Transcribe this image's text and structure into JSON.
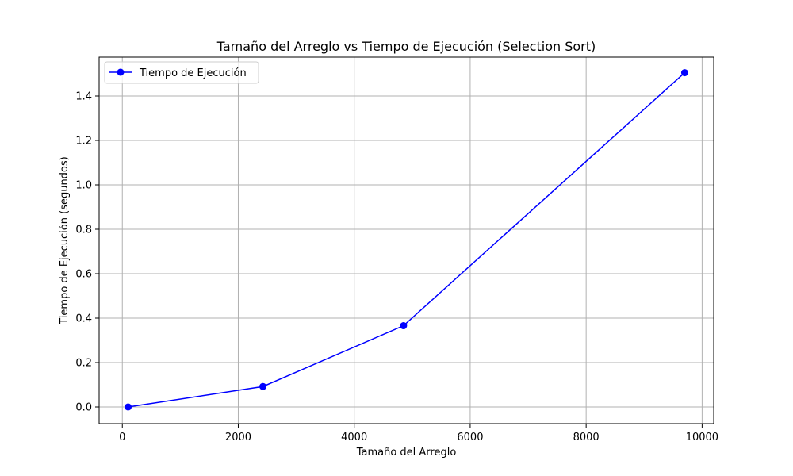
{
  "chart_data": {
    "type": "line",
    "title": "Tamaño del Arreglo vs Tiempo de Ejecución (Selection Sort)",
    "xlabel": "Tamaño del Arreglo",
    "ylabel": "Tiempo de Ejecución (segundos)",
    "xlim": [
      -400,
      10200
    ],
    "ylim": [
      -0.075,
      1.575
    ],
    "xticks": [
      0,
      2000,
      4000,
      6000,
      8000,
      10000
    ],
    "xtick_labels": [
      "0",
      "2000",
      "4000",
      "6000",
      "8000",
      "10000"
    ],
    "yticks": [
      0.0,
      0.2,
      0.4,
      0.6,
      0.8,
      1.0,
      1.2,
      1.4
    ],
    "ytick_labels": [
      "0.0",
      "0.2",
      "0.4",
      "0.6",
      "0.8",
      "1.0",
      "1.2",
      "1.4"
    ],
    "grid": true,
    "legend_position": "top-left",
    "series": [
      {
        "name": "Tiempo de Ejecución",
        "color": "#0000ff",
        "marker": "circle",
        "x": [
          100,
          2425,
          4850,
          9700
        ],
        "y": [
          0.0,
          0.092,
          0.366,
          1.505
        ]
      }
    ]
  }
}
